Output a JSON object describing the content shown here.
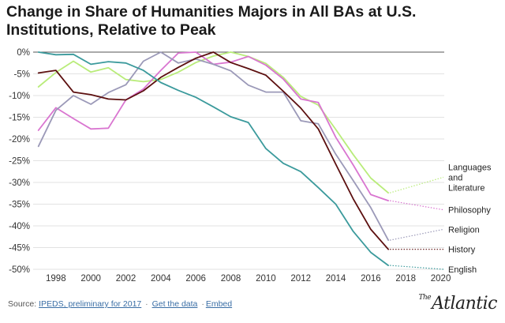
{
  "header": {
    "title": "Change in Share of Humanities Majors in All BAs at U.S. Institutions, Relative to Peak"
  },
  "footer": {
    "source_prefix": "Source: ",
    "source_link": "IPEDS, preliminary for 2017",
    "sep1": "·",
    "get_data": "Get the data",
    "sep2": "·",
    "embed": "Embed"
  },
  "brand": {
    "the": "The",
    "name": "Atlantic"
  },
  "chart_data": {
    "type": "line",
    "title": "Change in Share of Humanities Majors in All BAs at U.S. Institutions, Relative to Peak",
    "xlabel": "",
    "ylabel": "",
    "xlim": [
      1996.7,
      2020.2
    ],
    "ylim": [
      -50,
      0
    ],
    "x_ticks": [
      1998,
      2000,
      2002,
      2004,
      2006,
      2008,
      2010,
      2012,
      2014,
      2016,
      2018,
      2020
    ],
    "x_tick_labels": [
      "1998",
      "2000",
      "2002",
      "2004",
      "2006",
      "2008",
      "2010",
      "2012",
      "2014",
      "2016",
      "2018",
      "2020"
    ],
    "y_ticks": [
      0,
      -5,
      -10,
      -15,
      -20,
      -25,
      -30,
      -35,
      -40,
      -45,
      -50
    ],
    "y_tick_labels": [
      "0%",
      "-5%",
      "-10%",
      "-15%",
      "-20%",
      "-25%",
      "-30%",
      "-35%",
      "-40%",
      "-45%",
      "-50%"
    ],
    "grid": true,
    "x": [
      1997,
      1998,
      1999,
      2000,
      2001,
      2002,
      2003,
      2004,
      2005,
      2006,
      2007,
      2008,
      2009,
      2010,
      2011,
      2012,
      2013,
      2014,
      2015,
      2016,
      2017
    ],
    "series": [
      {
        "name": "Languages and Literature",
        "color": "#b9ec7a",
        "values": [
          -8.0,
          -4.7,
          -2.1,
          -4.6,
          -3.6,
          -6.3,
          -6.8,
          -6.3,
          -4.6,
          -2.4,
          -0.9,
          0.0,
          -1.0,
          -2.6,
          -5.8,
          -10.2,
          -12.2,
          -17.8,
          -23.6,
          -29.0,
          -32.4
        ],
        "end_label": "Languages and Literature"
      },
      {
        "name": "Philosophy",
        "color": "#d975d0",
        "values": [
          -18.0,
          -12.8,
          -15.3,
          -17.7,
          -17.5,
          -11.0,
          -8.5,
          -4.2,
          -0.2,
          0.0,
          -2.8,
          -2.3,
          -1.0,
          -3.0,
          -6.2,
          -10.8,
          -11.6,
          -19.6,
          -26.0,
          -32.8,
          -34.2
        ],
        "end_label": "Philosophy"
      },
      {
        "name": "Religion",
        "color": "#9b99b8",
        "values": [
          -21.7,
          -13.4,
          -10.0,
          -12.0,
          -9.3,
          -7.5,
          -2.1,
          0.0,
          -2.5,
          -1.6,
          -2.8,
          -4.3,
          -7.6,
          -9.2,
          -9.2,
          -15.8,
          -16.5,
          -23.5,
          -29.6,
          -35.8,
          -43.3
        ],
        "end_label": "Religion"
      },
      {
        "name": "History",
        "color": "#5c0f0f",
        "values": [
          -4.8,
          -4.2,
          -9.2,
          -9.8,
          -10.8,
          -11.0,
          -8.9,
          -5.8,
          -3.5,
          -1.4,
          0.0,
          -2.4,
          -3.8,
          -5.3,
          -9.0,
          -12.9,
          -17.7,
          -25.8,
          -33.8,
          -40.8,
          -45.4
        ],
        "end_label": "History"
      },
      {
        "name": "English",
        "color": "#3b9a9c",
        "values": [
          0.0,
          -0.6,
          -0.5,
          -2.8,
          -2.2,
          -2.5,
          -4.2,
          -7.0,
          -8.8,
          -10.4,
          -12.6,
          -14.9,
          -16.2,
          -22.2,
          -25.6,
          -27.5,
          -31.2,
          -35.0,
          -41.3,
          -46.1,
          -49.1
        ],
        "end_label": "English"
      }
    ],
    "legend": [
      {
        "series": "Languages and Literature",
        "lines": [
          "Languages",
          "and",
          "Literature"
        ],
        "anchor_y": -28.8
      },
      {
        "series": "Philosophy",
        "lines": [
          "Philosophy"
        ],
        "anchor_y": -36.3
      },
      {
        "series": "Religion",
        "lines": [
          "Religion"
        ],
        "anchor_y": -40.8
      },
      {
        "series": "History",
        "lines": [
          "History"
        ],
        "anchor_y": -45.4
      },
      {
        "series": "English",
        "lines": [
          "English"
        ],
        "anchor_y": -50.0
      }
    ],
    "legend_position": "right"
  }
}
